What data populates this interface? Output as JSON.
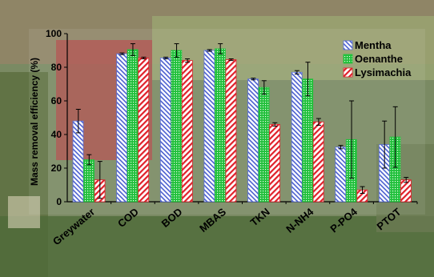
{
  "chart_data": {
    "type": "bar",
    "xlabel": "",
    "ylabel": "Mass removal efficiency (%)",
    "ylim": [
      0,
      100
    ],
    "yticks": [
      0,
      20,
      40,
      60,
      80,
      100
    ],
    "grid": false,
    "legend_position": "top-right",
    "categories": [
      "Greywater",
      "COD",
      "BOD",
      "MBAS",
      "TKN",
      "N-NH4",
      "P-PO4",
      "PTOT"
    ],
    "series": [
      {
        "name": "Mentha",
        "color": "#5b6fd6",
        "pattern": "diagonal-blue",
        "values": [
          48,
          88,
          85.5,
          90,
          73,
          77,
          32.5,
          34
        ],
        "errors": [
          7,
          0.5,
          0.5,
          0.5,
          0.5,
          1,
          1,
          14
        ]
      },
      {
        "name": "Oenanthe",
        "color": "#22c33a",
        "pattern": "dots-green",
        "values": [
          25,
          90.5,
          90,
          91,
          68,
          73,
          37,
          38.5
        ],
        "errors": [
          3,
          3.5,
          4,
          3,
          4,
          10,
          23,
          18
        ]
      },
      {
        "name": "Lysimachia",
        "color": "#e0202a",
        "pattern": "diagonal-red",
        "values": [
          13,
          85.5,
          84,
          84.5,
          46,
          47.5,
          7,
          13
        ],
        "errors": [
          11,
          0.5,
          1,
          0.5,
          1,
          2,
          2,
          1.5
        ]
      }
    ]
  }
}
